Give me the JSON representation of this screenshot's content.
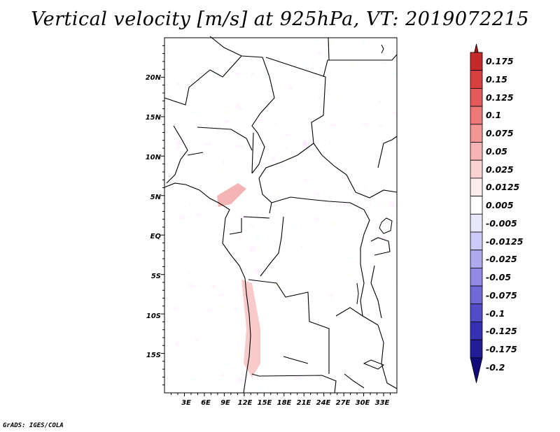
{
  "title": "Vertical velocity [m/s] at 925hPa, VT: 2019072215",
  "footer": "GrADS: IGES/COLA",
  "map": {
    "lon_range": [
      0,
      35
    ],
    "lat_range": [
      -20,
      25
    ],
    "lon_labels": [
      "3E",
      "6E",
      "9E",
      "12E",
      "15E",
      "18E",
      "21E",
      "24E",
      "27E",
      "30E",
      "33E"
    ],
    "lat_labels": [
      "20N",
      "15N",
      "10N",
      "5N",
      "EQ",
      "5S",
      "10S",
      "15S"
    ],
    "border_color": "#000000"
  },
  "colorbar": {
    "levels": [
      "0.175",
      "0.15",
      "0.125",
      "0.1",
      "0.075",
      "0.05",
      "0.025",
      "0.0125",
      "0.005",
      "-0.005",
      "-0.0125",
      "-0.025",
      "-0.05",
      "-0.075",
      "-0.1",
      "-0.125",
      "-0.175",
      "-0.2"
    ],
    "colors": [
      "#a01818",
      "#c42a2a",
      "#d84040",
      "#e45a5a",
      "#ec7878",
      "#f29696",
      "#f6b4b4",
      "#fad2d2",
      "#fcecec",
      "#ffffff",
      "#e8e8fc",
      "#cccaf6",
      "#aeaaee",
      "#908ae6",
      "#706ad8",
      "#524cc8",
      "#3630b2",
      "#221c96",
      "#120c7a"
    ]
  },
  "chart_data": {
    "type": "heatmap",
    "title": "Vertical velocity [m/s] at 925hPa, VT: 2019072215",
    "variable": "Vertical velocity",
    "units": "m/s",
    "pressure_level": "925hPa",
    "valid_time": "2019072215",
    "xlim": [
      0,
      35
    ],
    "ylim": [
      -20,
      25
    ],
    "contour_levels": [
      -0.2,
      -0.175,
      -0.125,
      -0.1,
      -0.075,
      -0.05,
      -0.025,
      -0.0125,
      -0.005,
      0.005,
      0.0125,
      0.025,
      0.05,
      0.075,
      0.1,
      0.125,
      0.15,
      0.175
    ]
  }
}
